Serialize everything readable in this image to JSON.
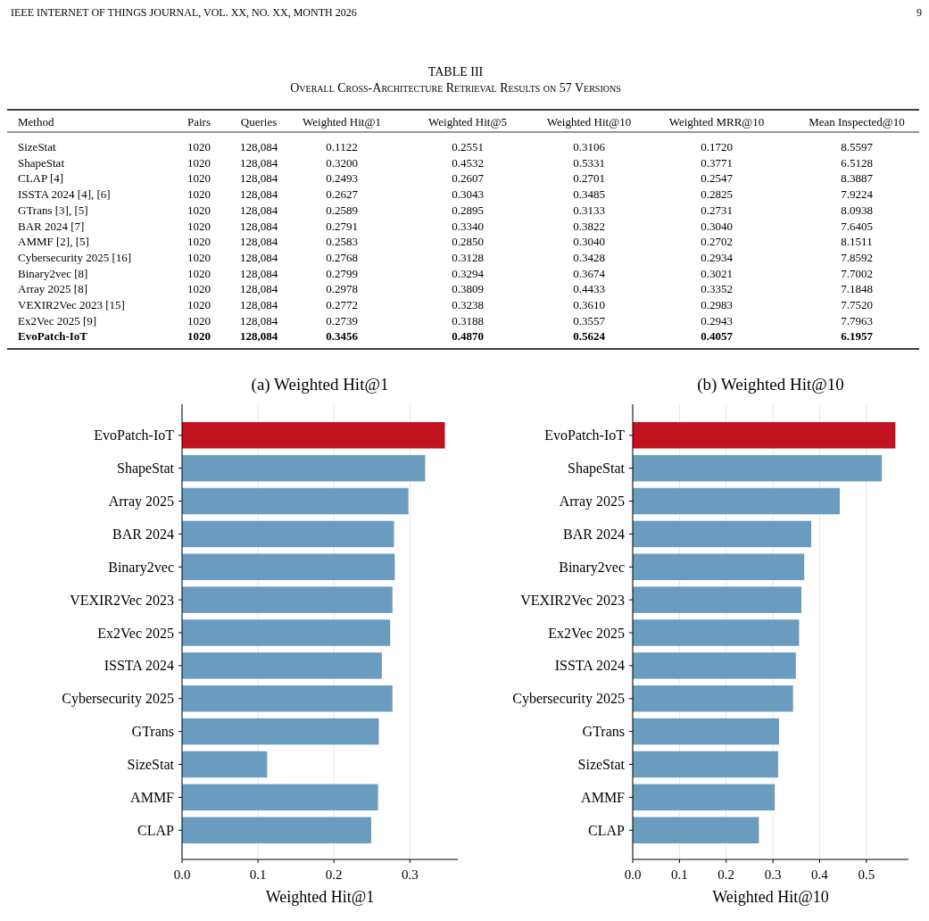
{
  "chart_data": [
    {
      "type": "other",
      "title": "TABLE III",
      "subtitle": "Overall Cross-Architecture Retrieval Results on 57 Versions",
      "annotations": [
        "IEEE INTERNET OF THINGS JOURNAL, VOL. XX, NO. XX, MONTH 2026",
        "9"
      ],
      "ylabel": "Method",
      "categories": [
        "Pairs",
        "Queries",
        "Weighted Hit@1",
        "Weighted Hit@5",
        "Weighted Hit@10",
        "Weighted MRR@10",
        "Mean Inspected@10"
      ],
      "y_categories": [
        "SizeStat",
        "ShapeStat",
        "CLAP [4]",
        "ISSTA 2024 [4], [6]",
        "GTrans [3], [5]",
        "BAR 2024 [7]",
        "AMMF [2], [5]",
        "Cybersecurity 2025 [16]",
        "Binary2vec [8]",
        "Array 2025 [8]",
        "VEXIR2Vec 2023 [15]",
        "Ex2Vec 2025 [9]",
        "EvoPatch-IoT"
      ],
      "cell_labels": [
        [
          "1020",
          "128,084",
          "0.1122",
          "0.2551",
          "0.3106",
          "0.1720",
          "8.5597"
        ],
        [
          "1020",
          "128,084",
          "0.3200",
          "0.4532",
          "0.5331",
          "0.3771",
          "6.5128"
        ],
        [
          "1020",
          "128,084",
          "0.2493",
          "0.2607",
          "0.2701",
          "0.2547",
          "8.3887"
        ],
        [
          "1020",
          "128,084",
          "0.2627",
          "0.3043",
          "0.3485",
          "0.2825",
          "7.9224"
        ],
        [
          "1020",
          "128,084",
          "0.2589",
          "0.2895",
          "0.3133",
          "0.2731",
          "8.0938"
        ],
        [
          "1020",
          "128,084",
          "0.2791",
          "0.3340",
          "0.3822",
          "0.3040",
          "7.6405"
        ],
        [
          "1020",
          "128,084",
          "0.2583",
          "0.2850",
          "0.3040",
          "0.2702",
          "8.1511"
        ],
        [
          "1020",
          "128,084",
          "0.2768",
          "0.3128",
          "0.3428",
          "0.2934",
          "7.8592"
        ],
        [
          "1020",
          "128,084",
          "0.2799",
          "0.3294",
          "0.3674",
          "0.3021",
          "7.7002"
        ],
        [
          "1020",
          "128,084",
          "0.2978",
          "0.3809",
          "0.4433",
          "0.3352",
          "7.1848"
        ],
        [
          "1020",
          "128,084",
          "0.2772",
          "0.3238",
          "0.3610",
          "0.2983",
          "7.7520"
        ],
        [
          "1020",
          "128,084",
          "0.2739",
          "0.3188",
          "0.3557",
          "0.2943",
          "7.7963"
        ],
        [
          "1020",
          "128,084",
          "0.3456",
          "0.4870",
          "0.5624",
          "0.4057",
          "6.1957"
        ]
      ]
    },
    {
      "type": "bar",
      "orientation": "horizontal",
      "title": "(a) Weighted Hit@1",
      "xlabel": "Weighted Hit@1",
      "grid": "x",
      "categories": [
        "EvoPatch-IoT",
        "ShapeStat",
        "Array 2025",
        "BAR 2024",
        "Binary2vec",
        "VEXIR2Vec 2023",
        "Ex2Vec 2025",
        "ISSTA 2024",
        "Cybersecurity 2025",
        "GTrans",
        "SizeStat",
        "AMMF",
        "CLAP"
      ],
      "values": [
        0.346,
        0.32,
        0.298,
        0.279,
        0.28,
        0.277,
        0.274,
        0.263,
        0.277,
        0.259,
        0.112,
        0.258,
        0.249
      ],
      "colors": [
        "#c3121f",
        "#6a9cbf",
        "#6a9cbf",
        "#6a9cbf",
        "#6a9cbf",
        "#6a9cbf",
        "#6a9cbf",
        "#6a9cbf",
        "#6a9cbf",
        "#6a9cbf",
        "#6a9cbf",
        "#6a9cbf",
        "#6a9cbf"
      ],
      "xlim": [
        0,
        0.363
      ],
      "xticks": [
        {
          "value": 0,
          "label": "0.0"
        },
        0.1,
        0.2,
        0.3
      ]
    },
    {
      "type": "bar",
      "orientation": "horizontal",
      "title": "(b) Weighted Hit@10",
      "xlabel": "Weighted Hit@10",
      "grid": "x",
      "categories": [
        "EvoPatch-IoT",
        "ShapeStat",
        "Array 2025",
        "BAR 2024",
        "Binary2vec",
        "VEXIR2Vec 2023",
        "Ex2Vec 2025",
        "ISSTA 2024",
        "Cybersecurity 2025",
        "GTrans",
        "SizeStat",
        "AMMF",
        "CLAP"
      ],
      "values": [
        0.562,
        0.533,
        0.443,
        0.382,
        0.367,
        0.361,
        0.356,
        0.349,
        0.343,
        0.313,
        0.311,
        0.304,
        0.27
      ],
      "colors": [
        "#c3121f",
        "#6a9cbf",
        "#6a9cbf",
        "#6a9cbf",
        "#6a9cbf",
        "#6a9cbf",
        "#6a9cbf",
        "#6a9cbf",
        "#6a9cbf",
        "#6a9cbf",
        "#6a9cbf",
        "#6a9cbf",
        "#6a9cbf"
      ],
      "xlim": [
        0,
        0.59
      ],
      "xticks": [
        {
          "value": 0,
          "label": "0.0"
        },
        0.1,
        0.2,
        0.3,
        0.4,
        0.5
      ]
    }
  ]
}
